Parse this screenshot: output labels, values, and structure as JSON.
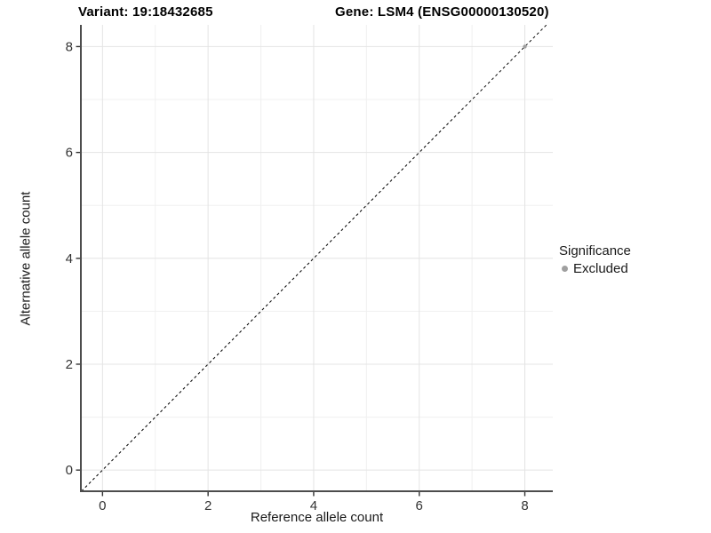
{
  "figure": {
    "title_left": "Variant: 19:18432685",
    "title_right": "Gene: LSM4 (ENSG00000130520)"
  },
  "chart_data": {
    "type": "scatter",
    "title": "Variant: 19:18432685 — Gene: LSM4 (ENSG00000130520)",
    "xlabel": "Reference allele count",
    "ylabel": "Alternative allele count",
    "xlim": [
      -0.41,
      8.53
    ],
    "ylim": [
      -0.4,
      8.41
    ],
    "x_major_ticks": [
      0,
      2,
      4,
      6,
      8
    ],
    "y_major_ticks": [
      0,
      2,
      4,
      6,
      8
    ],
    "x_minor_gridlines": [
      1,
      3,
      5,
      7
    ],
    "y_minor_gridlines": [
      1,
      3,
      5,
      7
    ],
    "grid": true,
    "abline": {
      "slope": 1,
      "intercept": 0,
      "linestyle": "dashed",
      "color": "#000000"
    },
    "series": [
      {
        "name": "Excluded",
        "color": "#a0a0a0",
        "points": [
          {
            "x": 8,
            "y": 8
          }
        ]
      }
    ],
    "legend": {
      "title": "Significance",
      "position": "right",
      "items": [
        {
          "label": "Excluded",
          "color": "#a0a0a0"
        }
      ]
    }
  },
  "style_colors": {
    "major_grid": "#e4e4e4",
    "minor_grid": "#f0f0f0",
    "axis_line": "#4d4d4d",
    "tick_mark": "#333333",
    "tick_label": "#333333",
    "point": "#a0a0a0",
    "abline": "#000000"
  }
}
